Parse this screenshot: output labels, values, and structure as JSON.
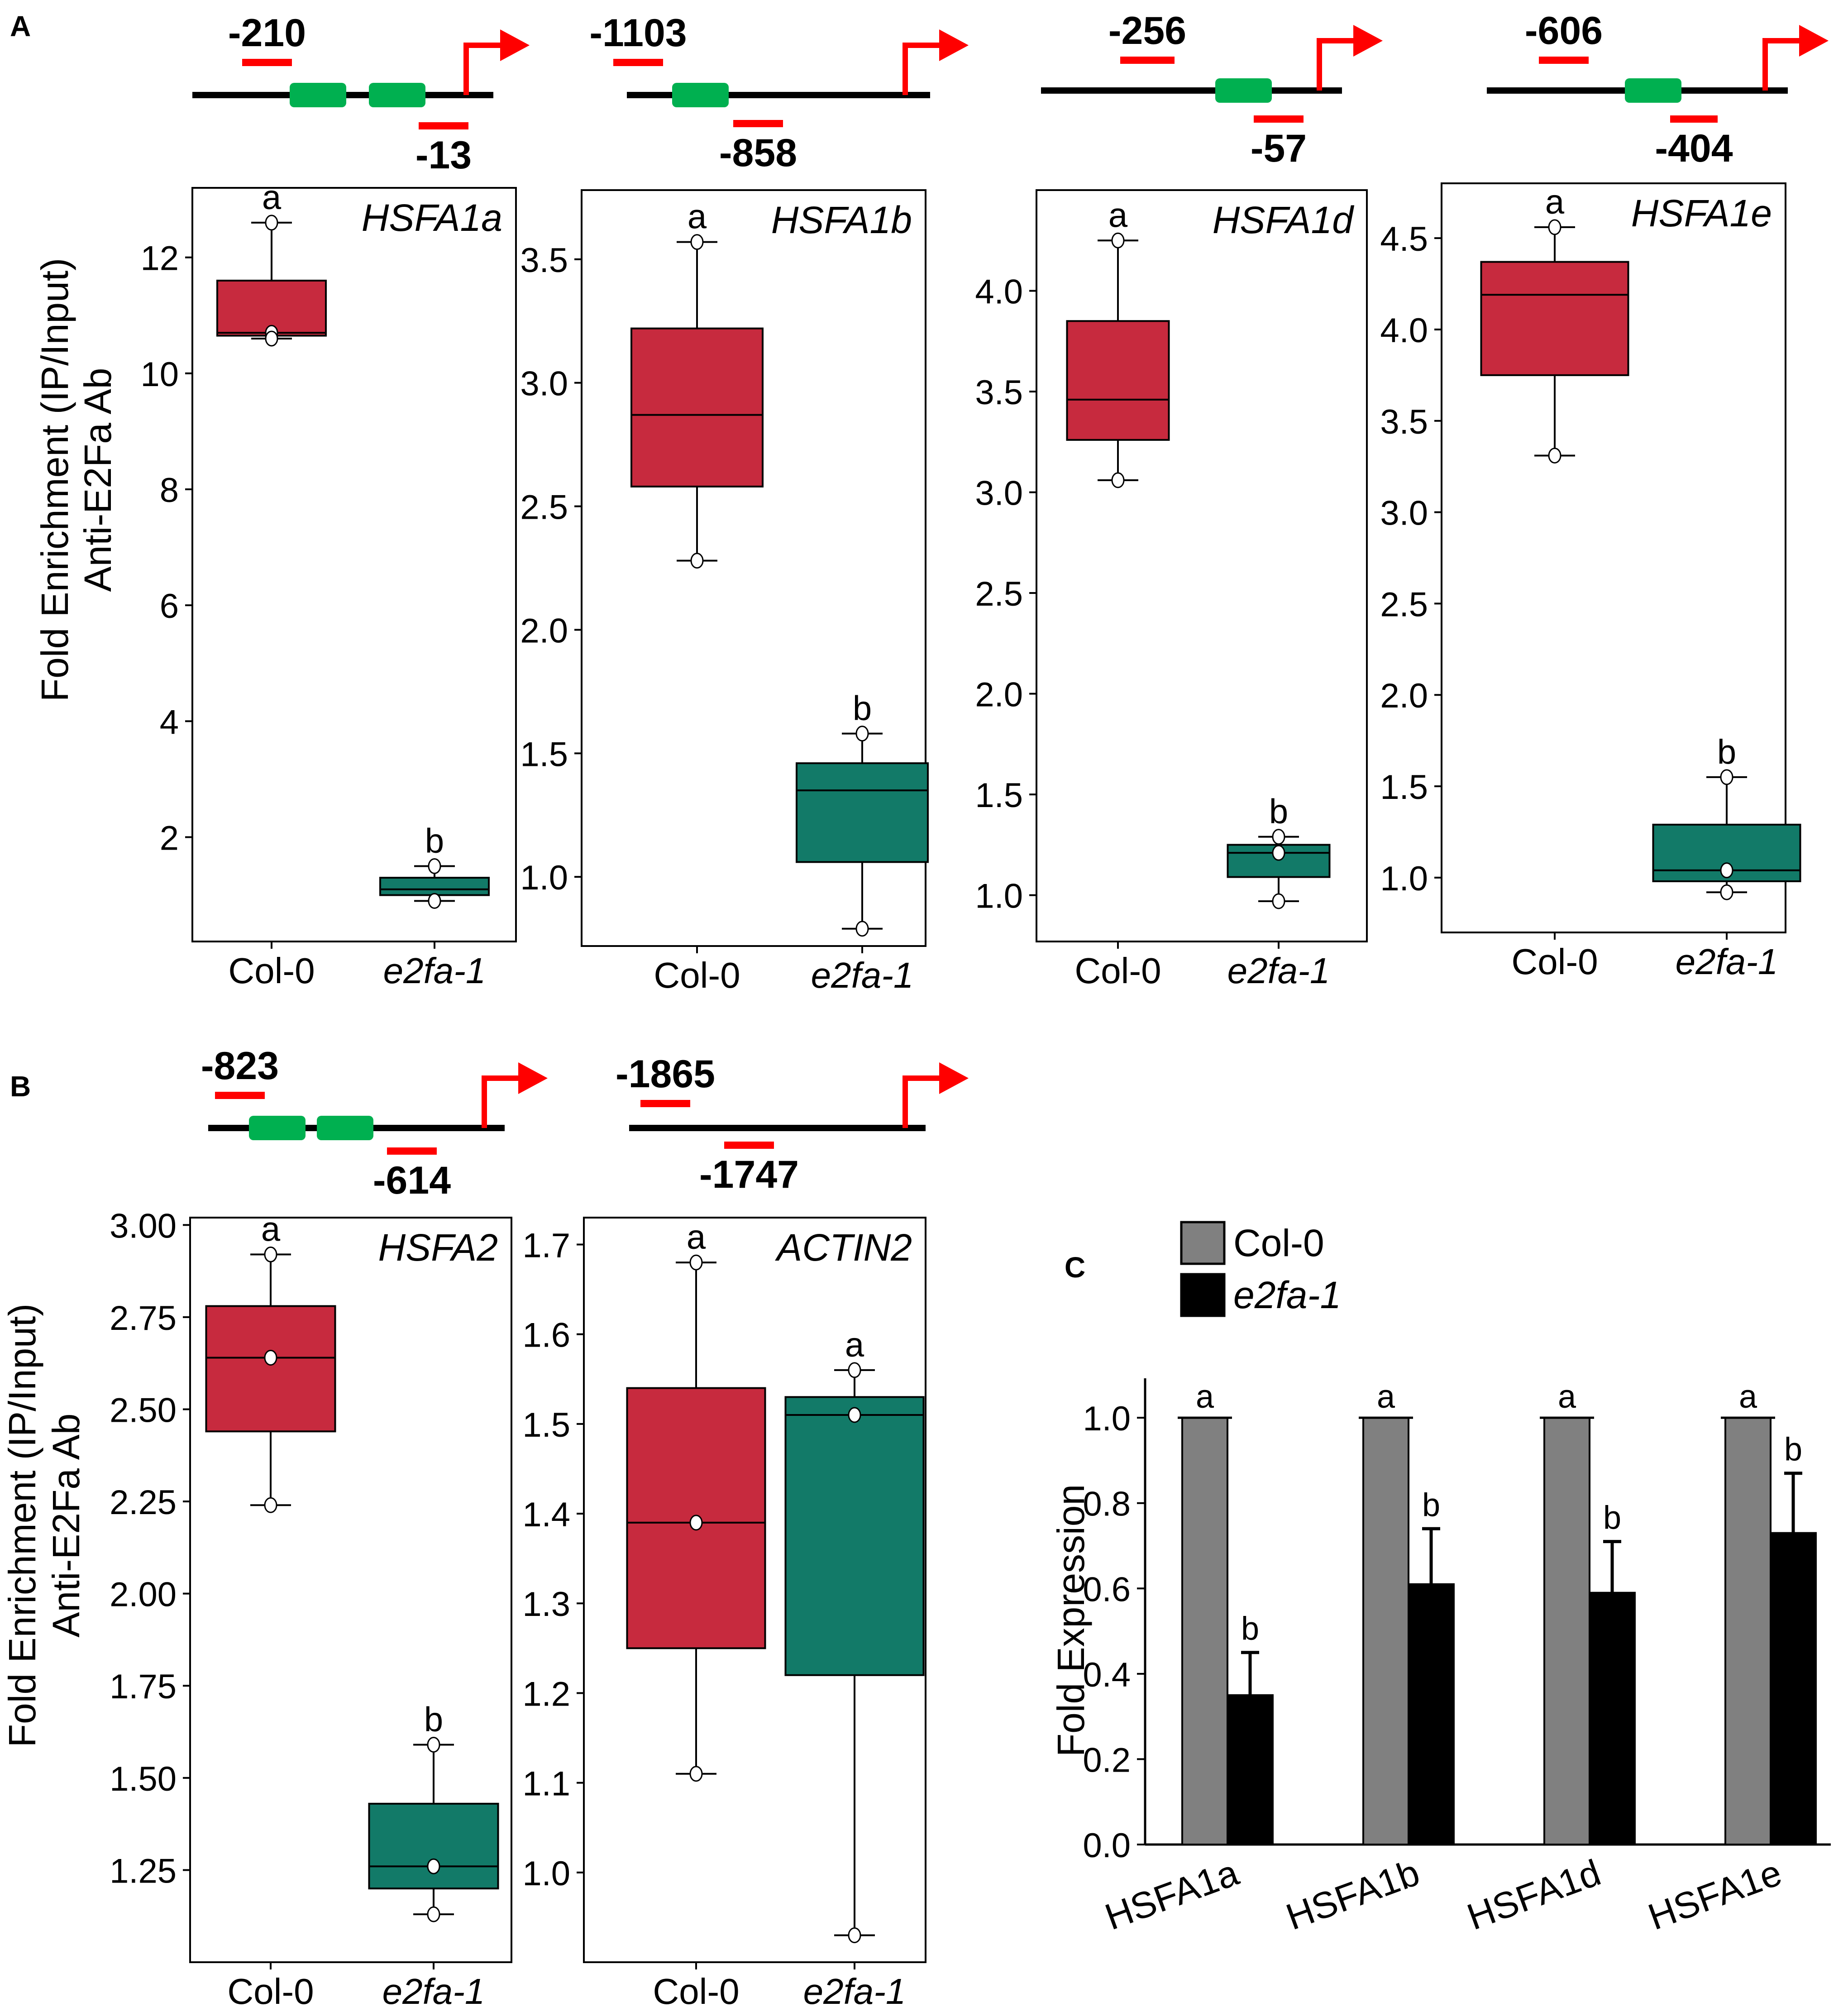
{
  "colors": {
    "col0_box": "#c72a3e",
    "e2fa_box": "#127a68",
    "promoter_green": "#00b050",
    "primer_red": "#ff0000",
    "bar_col0": "#808080",
    "bar_e2fa": "#000000"
  },
  "panel_labels": {
    "A": "A",
    "B": "B",
    "C": "C"
  },
  "y_label_line1": "Fold Enrichment (IP/Input)",
  "y_label_line2": "Anti-E2Fa Ab",
  "categories": [
    "Col-0",
    "e2fa-1"
  ],
  "chart_data": [
    {
      "type": "box",
      "gene": "HSFA1a",
      "panel": "A",
      "primers": {
        "upstream": "-210",
        "downstream": "-13"
      },
      "promoter_elements": 2,
      "ylim": [
        0.2,
        13.2
      ],
      "ticks": [
        2,
        4,
        6,
        8,
        10,
        12
      ],
      "tick_labels": [
        "2",
        "4",
        "6",
        "8",
        "10",
        "12"
      ],
      "boxes": [
        {
          "group": "Col-0",
          "whisker_low": 10.6,
          "q1": 10.65,
          "median": 10.7,
          "q3": 11.6,
          "whisker_high": 12.6,
          "points": [
            10.7,
            10.6,
            12.6
          ],
          "mean": 10.7,
          "letter": "a"
        },
        {
          "group": "e2fa-1",
          "whisker_low": 0.9,
          "q1": 1.0,
          "median": 1.1,
          "q3": 1.3,
          "whisker_high": 1.5,
          "points": [
            1.5,
            0.9
          ],
          "mean": 1.1,
          "letter": "b"
        }
      ]
    },
    {
      "type": "box",
      "gene": "HSFA1b",
      "panel": "A",
      "primers": {
        "upstream": "-1103",
        "downstream": "-858"
      },
      "promoter_elements": 1,
      "ylim": [
        0.72,
        3.78
      ],
      "ticks": [
        1.0,
        1.5,
        2.0,
        2.5,
        3.0,
        3.5
      ],
      "tick_labels": [
        "1.0",
        "1.5",
        "2.0",
        "2.5",
        "3.0",
        "3.5"
      ],
      "boxes": [
        {
          "group": "Col-0",
          "whisker_low": 2.28,
          "q1": 2.58,
          "median": 2.87,
          "q3": 3.22,
          "whisker_high": 3.57,
          "points": [
            3.57,
            2.28
          ],
          "mean": 2.87,
          "letter": "a"
        },
        {
          "group": "e2fa-1",
          "whisker_low": 0.79,
          "q1": 1.06,
          "median": 1.35,
          "q3": 1.46,
          "whisker_high": 1.58,
          "points": [
            1.58,
            0.79
          ],
          "mean": 1.35,
          "letter": "b"
        }
      ]
    },
    {
      "type": "box",
      "gene": "HSFA1d",
      "panel": "A",
      "primers": {
        "upstream": "-256",
        "downstream": "-57"
      },
      "promoter_elements": 1,
      "ylim": [
        0.77,
        4.5
      ],
      "ticks": [
        1.0,
        1.5,
        2.0,
        2.5,
        3.0,
        3.5,
        4.0
      ],
      "tick_labels": [
        "1.0",
        "1.5",
        "2.0",
        "2.5",
        "3.0",
        "3.5",
        "4.0"
      ],
      "boxes": [
        {
          "group": "Col-0",
          "whisker_low": 3.06,
          "q1": 3.26,
          "median": 3.46,
          "q3": 3.85,
          "whisker_high": 4.25,
          "points": [
            4.25,
            3.06
          ],
          "mean": 3.46,
          "letter": "a"
        },
        {
          "group": "e2fa-1",
          "whisker_low": 0.97,
          "q1": 1.09,
          "median": 1.21,
          "q3": 1.25,
          "whisker_high": 1.29,
          "points": [
            1.29,
            1.21,
            0.97
          ],
          "mean": 1.21,
          "letter": "b"
        }
      ]
    },
    {
      "type": "box",
      "gene": "HSFA1e",
      "panel": "A",
      "primers": {
        "upstream": "-606",
        "downstream": "-404"
      },
      "promoter_elements": 1,
      "ylim": [
        0.7,
        4.8
      ],
      "ticks": [
        1.0,
        1.5,
        2.0,
        2.5,
        3.0,
        3.5,
        4.0,
        4.5
      ],
      "tick_labels": [
        "1.0",
        "1.5",
        "2.0",
        "2.5",
        "3.0",
        "3.5",
        "4.0",
        "4.5"
      ],
      "boxes": [
        {
          "group": "Col-0",
          "whisker_low": 3.31,
          "q1": 3.75,
          "median": 4.19,
          "q3": 4.37,
          "whisker_high": 4.56,
          "points": [
            4.56,
            3.31
          ],
          "mean": 4.19,
          "letter": "a"
        },
        {
          "group": "e2fa-1",
          "whisker_low": 0.92,
          "q1": 0.98,
          "median": 1.04,
          "q3": 1.29,
          "whisker_high": 1.55,
          "points": [
            1.55,
            1.04,
            0.92
          ],
          "mean": 1.04,
          "letter": "b"
        }
      ]
    },
    {
      "type": "box",
      "gene": "HSFA2",
      "panel": "B",
      "primers": {
        "upstream": "-823",
        "downstream": "-614"
      },
      "promoter_elements": 2,
      "ylim": [
        1.0,
        3.02
      ],
      "ticks": [
        1.25,
        1.5,
        1.75,
        2.0,
        2.25,
        2.5,
        2.75,
        3.0
      ],
      "tick_labels": [
        "1.25",
        "1.50",
        "1.75",
        "2.00",
        "2.25",
        "2.50",
        "2.75",
        "3.00"
      ],
      "boxes": [
        {
          "group": "Col-0",
          "whisker_low": 2.24,
          "q1": 2.44,
          "median": 2.64,
          "q3": 2.78,
          "whisker_high": 2.92,
          "points": [
            2.92,
            2.64,
            2.24
          ],
          "mean": 2.64,
          "letter": "a"
        },
        {
          "group": "e2fa-1",
          "whisker_low": 1.13,
          "q1": 1.2,
          "median": 1.26,
          "q3": 1.43,
          "whisker_high": 1.59,
          "points": [
            1.59,
            1.26,
            1.13
          ],
          "mean": 1.26,
          "letter": "b"
        }
      ]
    },
    {
      "type": "box",
      "gene": "ACTIN2",
      "panel": "B",
      "primers": {
        "upstream": "-1865",
        "downstream": "-1747"
      },
      "promoter_elements": 0,
      "ylim": [
        0.9,
        1.73
      ],
      "ticks": [
        1.0,
        1.1,
        1.2,
        1.3,
        1.4,
        1.5,
        1.6,
        1.7
      ],
      "tick_labels": [
        "1.0",
        "1.1",
        "1.2",
        "1.3",
        "1.4",
        "1.5",
        "1.6",
        "1.7"
      ],
      "boxes": [
        {
          "group": "Col-0",
          "whisker_low": 1.11,
          "q1": 1.25,
          "median": 1.39,
          "q3": 1.54,
          "whisker_high": 1.68,
          "points": [
            1.68,
            1.39,
            1.11
          ],
          "mean": 1.39,
          "letter": "a"
        },
        {
          "group": "e2fa-1",
          "whisker_low": 0.93,
          "q1": 1.22,
          "median": 1.51,
          "q3": 1.53,
          "whisker_high": 1.56,
          "points": [
            1.56,
            1.51,
            0.93
          ],
          "mean": 1.51,
          "letter": "a"
        }
      ]
    },
    {
      "type": "bar",
      "panel": "C",
      "ylabel": "Fold Expression",
      "categories": [
        "HSFA1a",
        "HSFA1b",
        "HSFA1d",
        "HSFA1e"
      ],
      "ylim": [
        0.0,
        1.05
      ],
      "ticks": [
        0.0,
        0.2,
        0.4,
        0.6,
        0.8,
        1.0
      ],
      "tick_labels": [
        "0.0",
        "0.2",
        "0.4",
        "0.6",
        "0.8",
        "1.0"
      ],
      "legend": [
        "Col-0",
        "e2fa-1"
      ],
      "legend_position": "top-left",
      "series": [
        {
          "name": "Col-0",
          "values": [
            1.0,
            1.0,
            1.0,
            1.0
          ],
          "errors": [
            0,
            0,
            0,
            0
          ],
          "letters": [
            "a",
            "a",
            "a",
            "a"
          ]
        },
        {
          "name": "e2fa-1",
          "values": [
            0.35,
            0.61,
            0.59,
            0.73
          ],
          "errors": [
            0.1,
            0.13,
            0.12,
            0.14
          ],
          "letters": [
            "b",
            "b",
            "b",
            "b"
          ]
        }
      ]
    }
  ]
}
